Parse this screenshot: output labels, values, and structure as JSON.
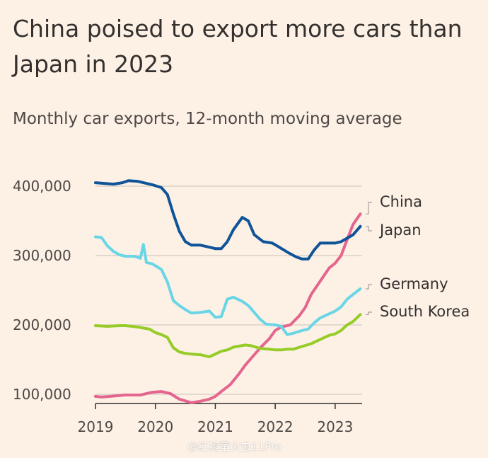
{
  "title": "China poised to export more cars than Japan in 2023",
  "subtitle": "Monthly car exports, 12-month moving average",
  "watermark": "@红袍萤火虫11Pro",
  "chart_data": {
    "type": "line",
    "title": "China poised to export more cars than Japan in 2023",
    "subtitle": "Monthly car exports, 12-month moving average",
    "xlabel": "",
    "ylabel": "",
    "xlim": [
      2019.0,
      2023.45
    ],
    "ylim": [
      85000,
      415000
    ],
    "x_ticks": [
      2019,
      2020,
      2021,
      2022,
      2023
    ],
    "x_tick_labels": [
      "2019",
      "2020",
      "2021",
      "2022",
      "2023"
    ],
    "y_ticks": [
      100000,
      200000,
      300000,
      400000
    ],
    "y_tick_labels": [
      "100,000",
      "200,000",
      "300,000",
      "400,000"
    ],
    "grid": "horizontal",
    "legend": "direct labels at right end of lines",
    "series": [
      {
        "name": "China",
        "color": "#e4658e",
        "x": [
          2019.0,
          2019.1,
          2019.25,
          2019.5,
          2019.75,
          2019.95,
          2020.1,
          2020.25,
          2020.4,
          2020.6,
          2020.75,
          2020.9,
          2021.0,
          2021.1,
          2021.25,
          2021.4,
          2021.5,
          2021.6,
          2021.75,
          2021.9,
          2022.0,
          2022.1,
          2022.25,
          2022.4,
          2022.5,
          2022.6,
          2022.75,
          2022.9,
          2023.0,
          2023.1,
          2023.2,
          2023.3,
          2023.42
        ],
        "values": [
          97000,
          96000,
          97000,
          99000,
          99000,
          103000,
          104000,
          101000,
          93000,
          88000,
          90000,
          93000,
          97000,
          104000,
          114000,
          130000,
          142000,
          152000,
          167000,
          180000,
          192000,
          197000,
          200000,
          213000,
          225000,
          244000,
          263000,
          282000,
          289000,
          300000,
          323000,
          345000,
          360000
        ]
      },
      {
        "name": "Japan",
        "color": "#0f5499",
        "x": [
          2019.0,
          2019.15,
          2019.3,
          2019.45,
          2019.55,
          2019.7,
          2019.85,
          2019.95,
          2020.1,
          2020.2,
          2020.3,
          2020.4,
          2020.5,
          2020.6,
          2020.75,
          2020.9,
          2021.0,
          2021.1,
          2021.2,
          2021.3,
          2021.45,
          2021.55,
          2021.65,
          2021.8,
          2021.95,
          2022.05,
          2022.2,
          2022.35,
          2022.45,
          2022.55,
          2022.65,
          2022.75,
          2022.9,
          2023.0,
          2023.1,
          2023.2,
          2023.3,
          2023.42
        ],
        "values": [
          405000,
          404000,
          403000,
          405000,
          408000,
          407000,
          404000,
          402000,
          398000,
          388000,
          360000,
          335000,
          320000,
          315000,
          315000,
          312000,
          310000,
          310000,
          320000,
          337000,
          355000,
          350000,
          330000,
          320000,
          318000,
          313000,
          305000,
          298000,
          295000,
          295000,
          308000,
          318000,
          318000,
          318000,
          320000,
          325000,
          330000,
          342000
        ]
      },
      {
        "name": "Germany",
        "color": "#69d6e6",
        "x": [
          2019.0,
          2019.1,
          2019.2,
          2019.3,
          2019.4,
          2019.5,
          2019.65,
          2019.75,
          2019.8,
          2019.85,
          2019.95,
          2020.1,
          2020.2,
          2020.3,
          2020.4,
          2020.5,
          2020.6,
          2020.75,
          2020.9,
          2021.0,
          2021.1,
          2021.2,
          2021.3,
          2021.45,
          2021.55,
          2021.65,
          2021.75,
          2021.85,
          2022.0,
          2022.1,
          2022.2,
          2022.3,
          2022.45,
          2022.55,
          2022.65,
          2022.75,
          2022.9,
          2023.0,
          2023.1,
          2023.2,
          2023.3,
          2023.42
        ],
        "values": [
          327000,
          326000,
          314000,
          306000,
          301000,
          299000,
          299000,
          296000,
          316000,
          290000,
          288000,
          280000,
          262000,
          235000,
          228000,
          222000,
          217000,
          218000,
          220000,
          211000,
          212000,
          237000,
          240000,
          234000,
          228000,
          218000,
          208000,
          201000,
          200000,
          198000,
          186000,
          188000,
          192000,
          194000,
          203000,
          210000,
          216000,
          220000,
          226000,
          237000,
          244000,
          252000
        ]
      },
      {
        "name": "South Korea",
        "color": "#96cc28",
        "x": [
          2019.0,
          2019.2,
          2019.4,
          2019.5,
          2019.7,
          2019.9,
          2020.0,
          2020.1,
          2020.2,
          2020.3,
          2020.4,
          2020.5,
          2020.6,
          2020.75,
          2020.9,
          2021.0,
          2021.1,
          2021.2,
          2021.3,
          2021.5,
          2021.6,
          2021.75,
          2021.9,
          2022.0,
          2022.1,
          2022.2,
          2022.3,
          2022.45,
          2022.6,
          2022.75,
          2022.9,
          2023.0,
          2023.1,
          2023.2,
          2023.3,
          2023.42
        ],
        "values": [
          199000,
          198000,
          199000,
          199000,
          197000,
          194000,
          189000,
          186000,
          182000,
          167000,
          161000,
          159000,
          158000,
          157000,
          154000,
          158000,
          162000,
          164000,
          168000,
          171000,
          170000,
          166000,
          165000,
          164000,
          164000,
          165000,
          165000,
          169000,
          173000,
          179000,
          185000,
          187000,
          192000,
          200000,
          205000,
          215000
        ]
      }
    ]
  }
}
